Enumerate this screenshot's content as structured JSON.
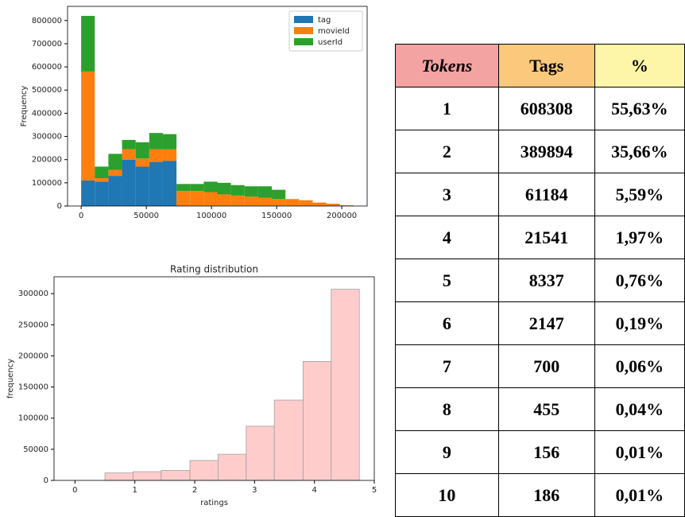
{
  "chart_data": [
    {
      "type": "histogram",
      "ylabel": "Frequency",
      "bins": [
        0,
        10450,
        20900,
        31350,
        41800,
        52250,
        62700,
        73150,
        83600,
        94050,
        104500,
        114950,
        125400,
        135850,
        146300,
        156750,
        167200,
        177650,
        188100,
        198550,
        209000
      ],
      "series": [
        {
          "name": "tag",
          "color": "#1f77b4",
          "values": [
            110000,
            105000,
            130000,
            200000,
            170000,
            190000,
            195000,
            0,
            0,
            0,
            0,
            0,
            0,
            0,
            0,
            0,
            0,
            0,
            0,
            0
          ]
        },
        {
          "name": "movieId",
          "color": "#ff7f0e",
          "values": [
            470000,
            15000,
            25000,
            45000,
            35000,
            55000,
            50000,
            65000,
            65000,
            60000,
            50000,
            45000,
            40000,
            35000,
            30000,
            30000,
            25000,
            15000,
            10000,
            3000
          ]
        },
        {
          "name": "userId",
          "color": "#2ca02c",
          "values": [
            240000,
            50000,
            70000,
            40000,
            70000,
            70000,
            65000,
            30000,
            30000,
            45000,
            50000,
            45000,
            45000,
            50000,
            40000,
            0,
            0,
            0,
            0,
            0
          ]
        }
      ],
      "stacked": true,
      "legend": "upper right",
      "xlim": [
        -10450,
        219450
      ],
      "xticks": [
        0,
        50000,
        100000,
        150000,
        200000
      ],
      "ylim": [
        0,
        861000
      ],
      "yticks": [
        0,
        100000,
        200000,
        300000,
        400000,
        500000,
        600000,
        700000,
        800000
      ]
    },
    {
      "type": "histogram",
      "title": "Rating distribution",
      "xlabel": "ratings",
      "ylabel": "frequency",
      "bins": [
        0.5,
        0.97,
        1.44,
        1.92,
        2.39,
        2.86,
        3.33,
        3.81,
        4.28,
        4.75
      ],
      "values": [
        12000,
        14000,
        16000,
        32000,
        42000,
        87000,
        129000,
        191000,
        307000
      ],
      "color": "#ffcccc",
      "edgecolor": "#a0a0a0",
      "xlim": [
        -0.35,
        5
      ],
      "xticks": [
        0,
        1,
        2,
        3,
        4,
        5
      ],
      "ylim": [
        0,
        327000
      ],
      "yticks": [
        0,
        50000,
        100000,
        150000,
        200000,
        250000,
        300000
      ]
    }
  ],
  "table": {
    "header": [
      "Tokens",
      "Tags",
      "%"
    ],
    "header_colors": [
      "#f4a3a3",
      "#fbc97c",
      "#fdf6a8"
    ],
    "rows": [
      [
        "1",
        "608308",
        "55,63%"
      ],
      [
        "2",
        "389894",
        "35,66%"
      ],
      [
        "3",
        "61184",
        "5,59%"
      ],
      [
        "4",
        "21541",
        "1,97%"
      ],
      [
        "5",
        "8337",
        "0,76%"
      ],
      [
        "6",
        "2147",
        "0,19%"
      ],
      [
        "7",
        "700",
        "0,06%"
      ],
      [
        "8",
        "455",
        "0,04%"
      ],
      [
        "9",
        "156",
        "0,01%"
      ],
      [
        "10",
        "186",
        "0,01%"
      ]
    ]
  }
}
